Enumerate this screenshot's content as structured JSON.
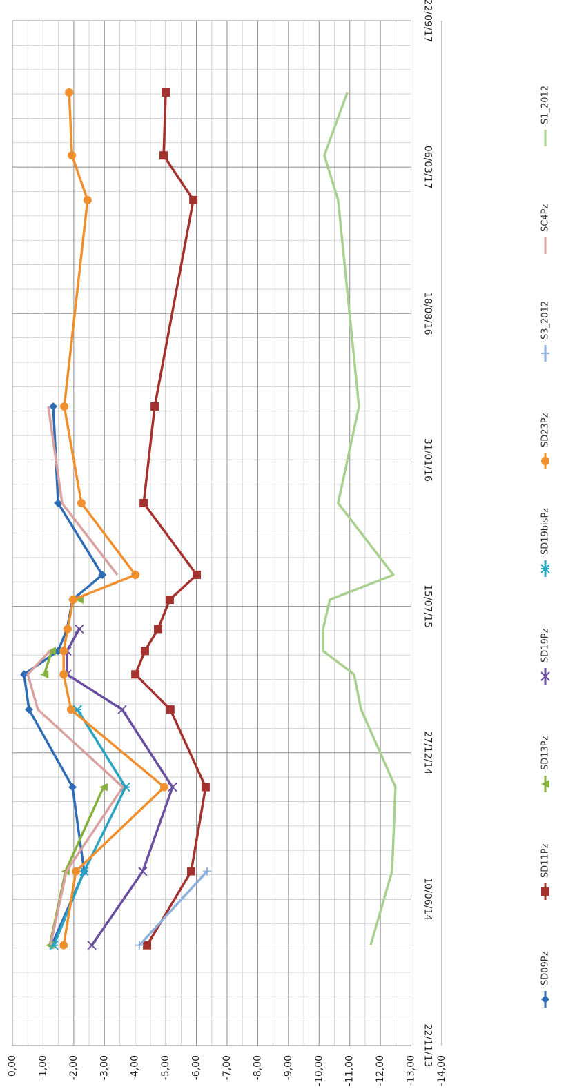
{
  "chart_data": {
    "type": "line",
    "x": [
      "2014-04-08",
      "2014-07-18",
      "2014-11-10",
      "2015-02-24",
      "2015-04-13",
      "2015-05-15",
      "2015-06-14",
      "2015-07-24",
      "2015-08-27",
      "2015-12-03",
      "2016-04-13",
      "2017-01-20",
      "2017-03-22",
      "2017-06-16"
    ],
    "xlim": [
      "2013-11-22",
      "2017-09-22"
    ],
    "xticks": [
      {
        "value": "2013-11-22",
        "label": "22/11/13"
      },
      {
        "value": "2014-06-10",
        "label": "10/06/14"
      },
      {
        "value": "2014-12-27",
        "label": "27/12/14"
      },
      {
        "value": "2015-07-15",
        "label": "15/07/15"
      },
      {
        "value": "2016-01-31",
        "label": "31/01/16"
      },
      {
        "value": "2016-08-18",
        "label": "18/08/16"
      },
      {
        "value": "2017-03-06",
        "label": "06/03/17"
      },
      {
        "value": "2017-09-22",
        "label": "22/09/17"
      }
    ],
    "ylim": [
      0,
      -14
    ],
    "yticks": [
      {
        "value": 0,
        "label": "0,00"
      },
      {
        "value": -1,
        "label": "-1,00"
      },
      {
        "value": -2,
        "label": "-2,00"
      },
      {
        "value": -3,
        "label": "-3,00"
      },
      {
        "value": -4,
        "label": "-4,00"
      },
      {
        "value": -5,
        "label": "-5,00"
      },
      {
        "value": -6,
        "label": "-6,00"
      },
      {
        "value": -7,
        "label": "-7,00"
      },
      {
        "value": -8,
        "label": "-8,00"
      },
      {
        "value": -9,
        "label": "-9,00"
      },
      {
        "value": -10,
        "label": "-10,00"
      },
      {
        "value": -11,
        "label": "-11,00"
      },
      {
        "value": -12,
        "label": "-12,00"
      },
      {
        "value": -13,
        "label": "-13,00"
      },
      {
        "value": -14,
        "label": "-14,00"
      }
    ],
    "grid": true,
    "legend": "right",
    "series": [
      {
        "name": "SD09Pz",
        "color": "#2f6cb5",
        "marker": "diamond",
        "values": [
          -1.28,
          -2.34,
          -1.96,
          -0.54,
          -0.38,
          -1.49,
          -1.78,
          -1.96,
          -2.93,
          -1.49,
          -1.33,
          null,
          null,
          null
        ]
      },
      {
        "name": "SD11Pz",
        "color": "#a3322e",
        "marker": "square",
        "values": [
          -4.39,
          -5.83,
          -6.3,
          -5.15,
          -4.01,
          -4.32,
          -4.75,
          -5.13,
          -6.01,
          -4.28,
          -4.64,
          -5.9,
          -4.93,
          -5.0
        ]
      },
      {
        "name": "SD13Pz",
        "color": "#86b13d",
        "marker": "triangle",
        "values": [
          -1.22,
          -1.73,
          -2.97,
          null,
          -1.04,
          -1.28,
          null,
          -2.18,
          null,
          null,
          null,
          null,
          null,
          null
        ]
      },
      {
        "name": "SD19Pz",
        "color": "#6a4e9f",
        "marker": "x",
        "values": [
          -2.59,
          -4.25,
          -5.22,
          -3.58,
          -1.78,
          -1.78,
          -2.18,
          null,
          null,
          null,
          null,
          null,
          null,
          null
        ]
      },
      {
        "name": "SD19bisPz",
        "color": "#2aa3c2",
        "marker": "star",
        "values": [
          -1.35,
          -2.34,
          -3.69,
          -2.12,
          null,
          null,
          null,
          null,
          null,
          null,
          null,
          null,
          null,
          null
        ]
      },
      {
        "name": "SD23Pz",
        "color": "#f08f2d",
        "marker": "circle",
        "values": [
          -1.67,
          -2.07,
          -4.95,
          -1.91,
          -1.67,
          -1.67,
          -1.8,
          -1.98,
          -4.01,
          -2.25,
          -1.69,
          -2.45,
          -1.94,
          -1.85
        ]
      },
      {
        "name": "S3_2012",
        "color": "#8fb1dd",
        "marker": "plus",
        "values": [
          -4.14,
          -6.35,
          null,
          null,
          null,
          null,
          null,
          null,
          null,
          null,
          null,
          null,
          null,
          null
        ]
      },
      {
        "name": "SC4Pz",
        "color": "#d9a1a0",
        "marker": "none",
        "values": [
          -1.24,
          -1.76,
          -3.6,
          -0.83,
          -0.5,
          -1.22,
          null,
          null,
          -3.42,
          -1.62,
          -1.17,
          null,
          null,
          null
        ]
      },
      {
        "name": "S1_2012",
        "color": "#a9d08e",
        "marker": "none",
        "values": [
          -11.68,
          -12.38,
          -12.49,
          -11.37,
          -11.14,
          -10.13,
          -10.13,
          -10.35,
          -12.42,
          -10.62,
          -11.3,
          -10.62,
          -10.17,
          -10.92
        ]
      }
    ]
  }
}
